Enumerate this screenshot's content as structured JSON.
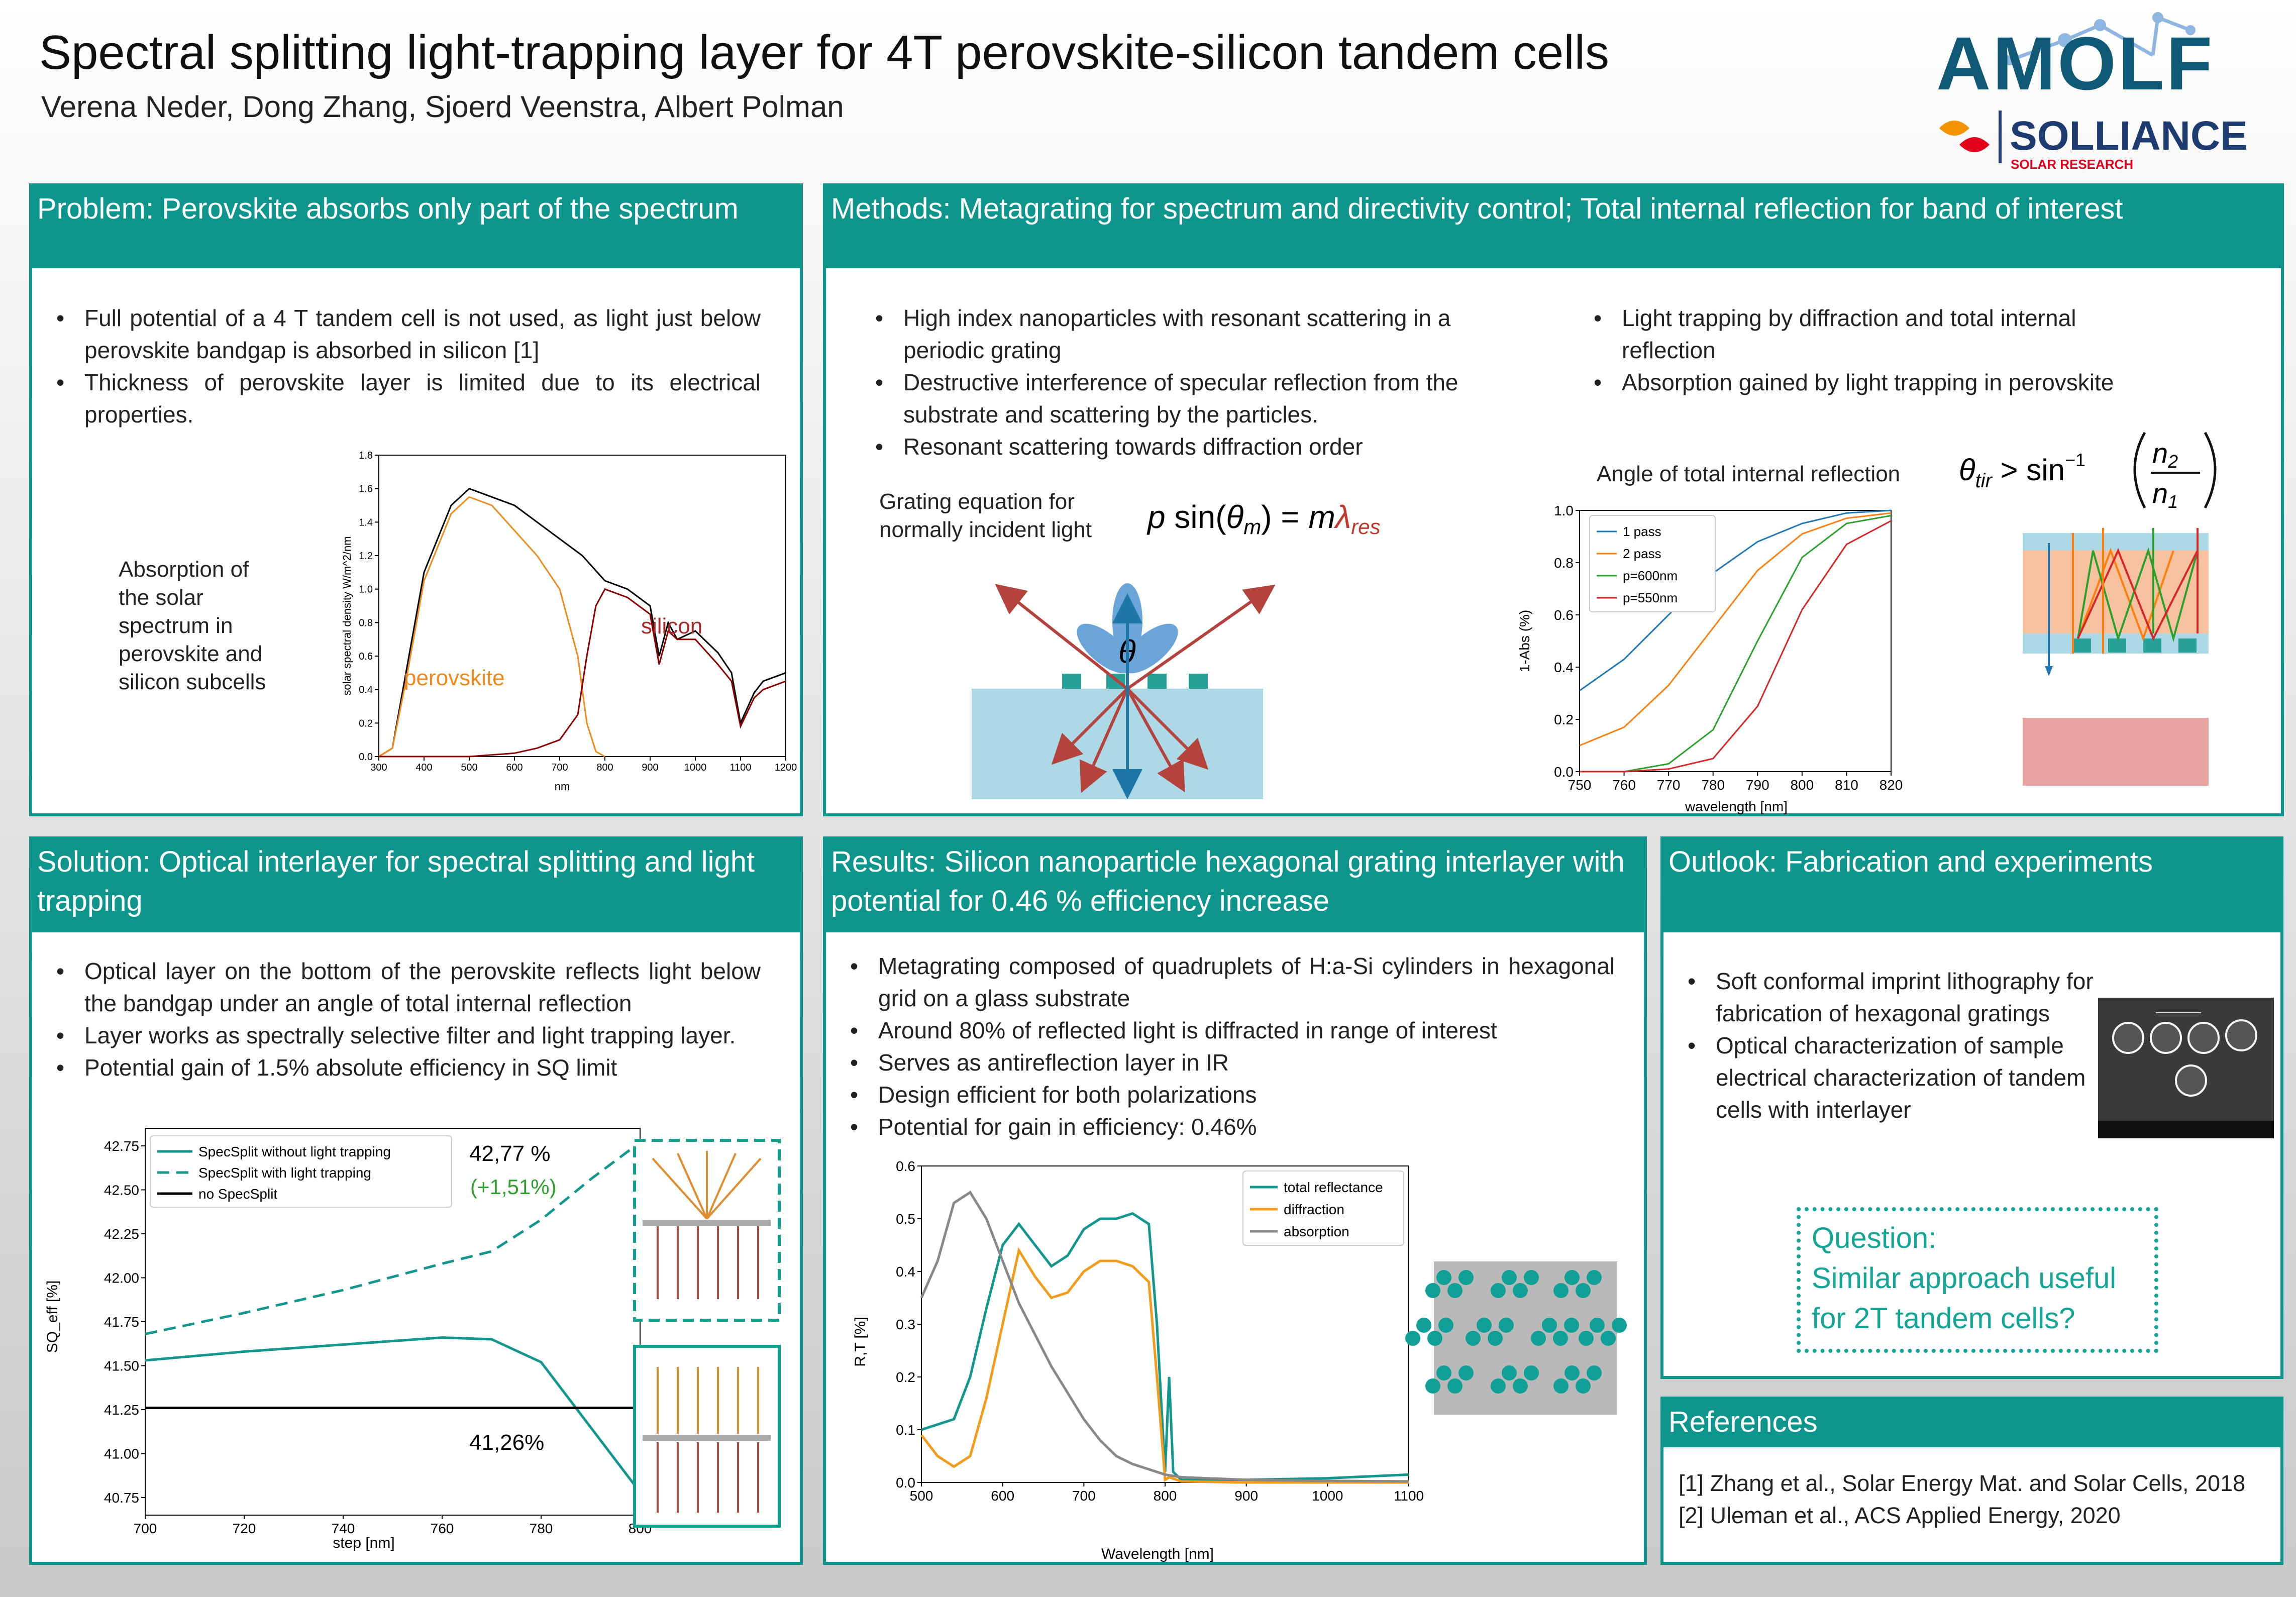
{
  "header": {
    "title": "Spectral splitting light-trapping layer for 4T perovskite-silicon tandem cells",
    "authors": "Verena Neder, Dong Zhang, Sjoerd Veenstra, Albert Polman",
    "logo_amolf": "AMOLF",
    "logo_solliance": "SOLLIANCE",
    "logo_solliance_sub": "SOLAR RESEARCH"
  },
  "problem": {
    "heading": "Problem: Perovskite absorbs only part of the spectrum",
    "bullets": [
      "Full potential of a 4 T tandem cell is not used, as light just below perovskite bandgap is absorbed in silicon [1]",
      "Thickness of perovskite layer is limited due to its electrical properties."
    ],
    "side_text": "Absorption of the solar spectrum in perovskite and silicon subcells",
    "chart": {
      "ylabel": "solar spectral density W/m^2/nm",
      "xlabel": "nm",
      "label_perovskite": "perovskite",
      "label_silicon": "silicon",
      "xticks": [
        "300",
        "400",
        "500",
        "600",
        "700",
        "800",
        "900",
        "1000",
        "1100",
        "1200"
      ],
      "yticks": [
        "0.0",
        "0.2",
        "0.4",
        "0.6",
        "0.8",
        "1.0",
        "1.2",
        "1.4",
        "1.6",
        "1.8"
      ]
    }
  },
  "methods": {
    "heading": "Methods: Metagrating for spectrum and directivity control; Total internal reflection for band of interest",
    "bullets_left": [
      "High index nanoparticles with resonant scattering in a periodic grating",
      "Destructive interference of specular reflection from the substrate and scattering by the particles.",
      "Resonant scattering towards diffraction order"
    ],
    "bullets_right": [
      "Light trapping by diffraction and total internal reflection",
      "Absorption gained by light trapping in perovskite"
    ],
    "grating_text": "Grating equation for normally incident light",
    "tir_text": "Angle of total internal reflection",
    "theta_symbol": "θ",
    "chart": {
      "ylabel": "1-Abs (%)",
      "xlabel": "wavelength [nm]",
      "xticks": [
        "750",
        "760",
        "770",
        "780",
        "790",
        "800",
        "810",
        "820"
      ],
      "yticks": [
        "0.0",
        "0.2",
        "0.4",
        "0.6",
        "0.8",
        "1.0"
      ],
      "legend": [
        "1 pass",
        "2 pass",
        "p=600nm",
        "p=550nm"
      ],
      "colors": [
        "#1f77b4",
        "#ff7f0e",
        "#2ca02c",
        "#d62728"
      ]
    }
  },
  "solution": {
    "heading": "Solution: Optical interlayer for spectral splitting and light trapping",
    "bullets": [
      "Optical layer on the bottom of the perovskite reflects light below the bandgap under an angle of total internal reflection",
      "Layer works as spectrally selective filter and light trapping layer.",
      "Potential gain of 1.5% absolute efficiency in SQ limit"
    ],
    "chart": {
      "ylabel": "SQ_eff [%]",
      "xlabel": "step [nm]",
      "xticks": [
        "700",
        "720",
        "740",
        "760",
        "780",
        "800"
      ],
      "yticks": [
        "40.75",
        "41.00",
        "41.25",
        "41.50",
        "41.75",
        "42.00",
        "42.25",
        "42.50",
        "42.75"
      ],
      "legend": [
        "SpecSplit without light trapping",
        "SpecSplit with light trapping",
        "no SpecSplit"
      ],
      "ann_top": "42,77 %",
      "ann_gain": "(+1,51%)",
      "ann_bottom": "41,26%"
    }
  },
  "results": {
    "heading": "Results: Silicon nanoparticle hexagonal grating interlayer with potential for 0.46 % efficiency increase",
    "bullets": [
      "Metagrating composed of quadruplets of H:a-Si cylinders in hexagonal grid on a glass substrate",
      "Around 80% of reflected light is diffracted in range of interest",
      "Serves as antireflection layer in IR",
      "Design efficient for both polarizations",
      "Potential for gain in efficiency: 0.46%"
    ],
    "chart": {
      "ylabel": "R,T [%]",
      "xlabel": "Wavelength [nm]",
      "xticks": [
        "500",
        "600",
        "700",
        "800",
        "900",
        "1000",
        "1100"
      ],
      "yticks": [
        "0.0",
        "0.1",
        "0.2",
        "0.3",
        "0.4",
        "0.5",
        "0.6"
      ],
      "legend": [
        "total reflectance",
        "diffraction",
        "absorption"
      ]
    }
  },
  "outlook": {
    "heading": "Outlook: Fabrication and experiments",
    "bullets": [
      "Soft conformal imprint lithography for fabrication of hexagonal gratings",
      "Optical characterization of sample electrical characterization of tandem cells with interlayer"
    ],
    "question_1": "Question:",
    "question_2": "Similar approach useful",
    "question_3": "for 2T tandem cells?"
  },
  "references": {
    "heading": "References",
    "items": [
      "[1] Zhang et al., Solar Energy Mat. and Solar Cells, 2018",
      "[2] Uleman et al., ACS Applied Energy, 2020"
    ]
  },
  "chart_data": [
    {
      "type": "line",
      "xlabel": "nm",
      "ylabel": "solar spectral density W/m^2/nm",
      "xlim": [
        300,
        1200
      ],
      "ylim": [
        0,
        1.8
      ],
      "series": [
        {
          "name": "",
          "x": [
            300,
            330,
            360,
            400,
            430,
            460,
            480,
            500,
            520,
            550,
            600,
            650,
            700,
            750,
            800,
            850,
            900,
            920,
            940,
            960,
            1000,
            1050,
            1080,
            1100,
            1130,
            1150,
            1200
          ],
          "values": [
            0,
            0.05,
            0.5,
            1.1,
            1.3,
            1.5,
            1.55,
            1.6,
            1.58,
            1.55,
            1.5,
            1.4,
            1.3,
            1.2,
            1.05,
            1.0,
            0.9,
            0.6,
            0.8,
            0.7,
            0.75,
            0.62,
            0.5,
            0.2,
            0.38,
            0.45,
            0.5
          ]
        },
        {
          "name": "perovskite",
          "x": [
            300,
            330,
            360,
            400,
            430,
            460,
            500,
            550,
            600,
            650,
            700,
            740,
            760,
            780,
            800
          ],
          "values": [
            0,
            0.05,
            0.45,
            1.05,
            1.25,
            1.45,
            1.55,
            1.5,
            1.35,
            1.2,
            1.0,
            0.6,
            0.2,
            0.03,
            0
          ]
        },
        {
          "name": "silicon",
          "x": [
            300,
            400,
            500,
            600,
            650,
            700,
            740,
            760,
            780,
            800,
            850,
            900,
            920,
            940,
            960,
            1000,
            1050,
            1080,
            1100,
            1130,
            1150,
            1200
          ],
          "values": [
            0,
            0,
            0,
            0.02,
            0.05,
            0.1,
            0.25,
            0.6,
            0.9,
            1.0,
            0.95,
            0.85,
            0.55,
            0.75,
            0.7,
            0.7,
            0.55,
            0.45,
            0.18,
            0.35,
            0.4,
            0.45
          ]
        }
      ]
    },
    {
      "type": "line",
      "xlabel": "wavelength [nm]",
      "ylabel": "1-Abs (%)",
      "xlim": [
        750,
        820
      ],
      "ylim": [
        0,
        1
      ],
      "x": [
        750,
        760,
        770,
        780,
        790,
        800,
        810,
        820
      ],
      "series": [
        {
          "name": "1 pass",
          "values": [
            0.31,
            0.43,
            0.6,
            0.76,
            0.88,
            0.95,
            0.99,
            1.0
          ]
        },
        {
          "name": "2 pass",
          "values": [
            0.1,
            0.17,
            0.33,
            0.55,
            0.77,
            0.91,
            0.97,
            0.99
          ]
        },
        {
          "name": "p=600nm",
          "values": [
            0.0,
            0.0,
            0.03,
            0.16,
            0.5,
            0.82,
            0.95,
            0.98
          ]
        },
        {
          "name": "p=550nm",
          "values": [
            0.0,
            0.0,
            0.01,
            0.05,
            0.25,
            0.62,
            0.87,
            0.96
          ]
        }
      ]
    },
    {
      "type": "line",
      "xlabel": "step [nm]",
      "ylabel": "SQ_eff [%]",
      "xlim": [
        700,
        800
      ],
      "ylim": [
        40.65,
        42.85
      ],
      "x": [
        700,
        720,
        740,
        760,
        770,
        780,
        790,
        800
      ],
      "series": [
        {
          "name": "SpecSplit without light trapping",
          "values": [
            41.53,
            41.58,
            41.62,
            41.66,
            41.65,
            41.52,
            41.15,
            40.78
          ]
        },
        {
          "name": "SpecSplit with light trapping",
          "values": [
            41.68,
            41.8,
            41.93,
            42.08,
            42.15,
            42.33,
            42.56,
            42.77
          ]
        },
        {
          "name": "no SpecSplit",
          "values": [
            41.26,
            41.26,
            41.26,
            41.26,
            41.26,
            41.26,
            41.26,
            41.26
          ]
        }
      ]
    },
    {
      "type": "line",
      "xlabel": "Wavelength [nm]",
      "ylabel": "R,T [%]",
      "xlim": [
        500,
        1100
      ],
      "ylim": [
        0,
        0.6
      ],
      "series": [
        {
          "name": "total reflectance",
          "x": [
            500,
            520,
            540,
            560,
            580,
            600,
            620,
            640,
            660,
            680,
            700,
            720,
            740,
            760,
            780,
            790,
            800,
            805,
            810,
            820,
            900,
            1000,
            1100
          ],
          "values": [
            0.1,
            0.11,
            0.12,
            0.2,
            0.33,
            0.45,
            0.49,
            0.45,
            0.41,
            0.43,
            0.48,
            0.5,
            0.5,
            0.51,
            0.49,
            0.3,
            0.02,
            0.2,
            0.02,
            0.005,
            0.005,
            0.008,
            0.015
          ]
        },
        {
          "name": "diffraction",
          "x": [
            500,
            520,
            540,
            560,
            580,
            600,
            620,
            640,
            660,
            680,
            700,
            720,
            740,
            760,
            780,
            790,
            800,
            805,
            820,
            900,
            1000,
            1100
          ],
          "values": [
            0.09,
            0.05,
            0.03,
            0.05,
            0.16,
            0.3,
            0.44,
            0.39,
            0.35,
            0.36,
            0.4,
            0.42,
            0.42,
            0.41,
            0.38,
            0.2,
            0.005,
            0.01,
            0.002,
            0.0,
            0.0,
            0.0
          ]
        },
        {
          "name": "absorption",
          "x": [
            500,
            520,
            540,
            560,
            580,
            600,
            620,
            640,
            660,
            680,
            700,
            720,
            740,
            760,
            780,
            800,
            820,
            900,
            1000,
            1100
          ],
          "values": [
            0.35,
            0.42,
            0.53,
            0.55,
            0.5,
            0.42,
            0.34,
            0.28,
            0.22,
            0.17,
            0.12,
            0.08,
            0.05,
            0.035,
            0.025,
            0.015,
            0.01,
            0.005,
            0.003,
            0.002
          ]
        }
      ]
    }
  ]
}
